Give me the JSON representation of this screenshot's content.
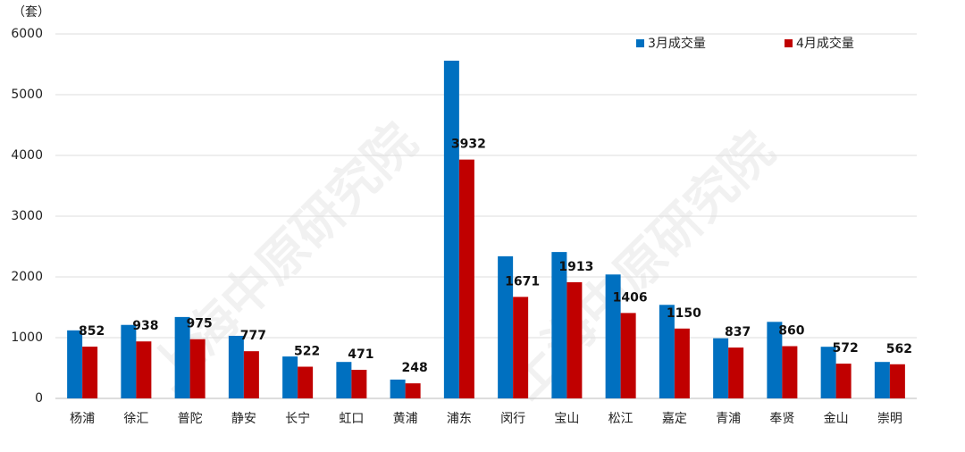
{
  "chart_data": {
    "type": "bar",
    "unit": "（套）",
    "watermark": "上海中原研究院",
    "categories": [
      "杨浦",
      "徐汇",
      "普陀",
      "静安",
      "长宁",
      "虹口",
      "黄浦",
      "浦东",
      "闵行",
      "宝山",
      "松江",
      "嘉定",
      "青浦",
      "奉贤",
      "金山",
      "崇明"
    ],
    "series": [
      {
        "name": "3月成交量",
        "color": "#0070c0",
        "values": [
          1120,
          1210,
          1340,
          1030,
          690,
          600,
          310,
          5560,
          2340,
          2410,
          2040,
          1540,
          990,
          1260,
          850,
          600
        ]
      },
      {
        "name": "4月成交量",
        "color": "#c00000",
        "data_labels": true,
        "values": [
          852,
          938,
          975,
          777,
          522,
          471,
          248,
          3932,
          1671,
          1913,
          1406,
          1150,
          837,
          860,
          572,
          562
        ]
      }
    ],
    "ylim": [
      0,
      6000
    ],
    "yticks": [
      0,
      1000,
      2000,
      3000,
      4000,
      5000,
      6000
    ],
    "grid": true,
    "legend": "top-right"
  }
}
